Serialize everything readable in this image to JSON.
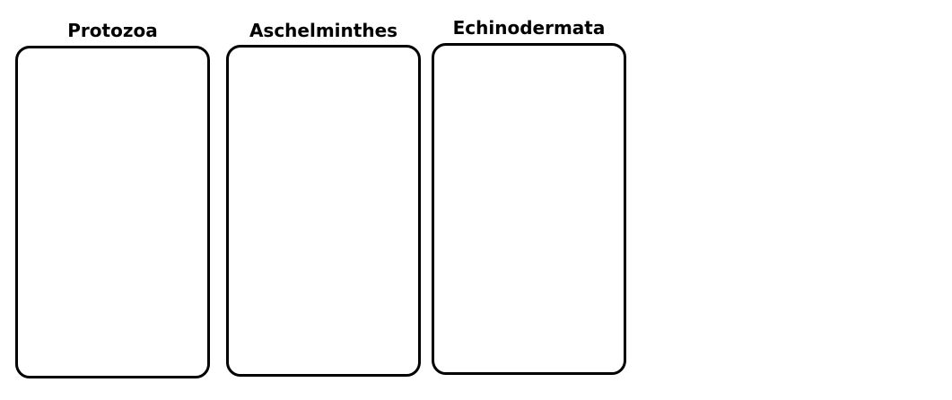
{
  "columns": [
    {
      "title": "Protozoa"
    },
    {
      "title": "Aschelminthes"
    },
    {
      "title": "Echinodermata"
    }
  ],
  "colors": {
    "background": "#ffffff",
    "border": "#000000",
    "text": "#000000"
  }
}
